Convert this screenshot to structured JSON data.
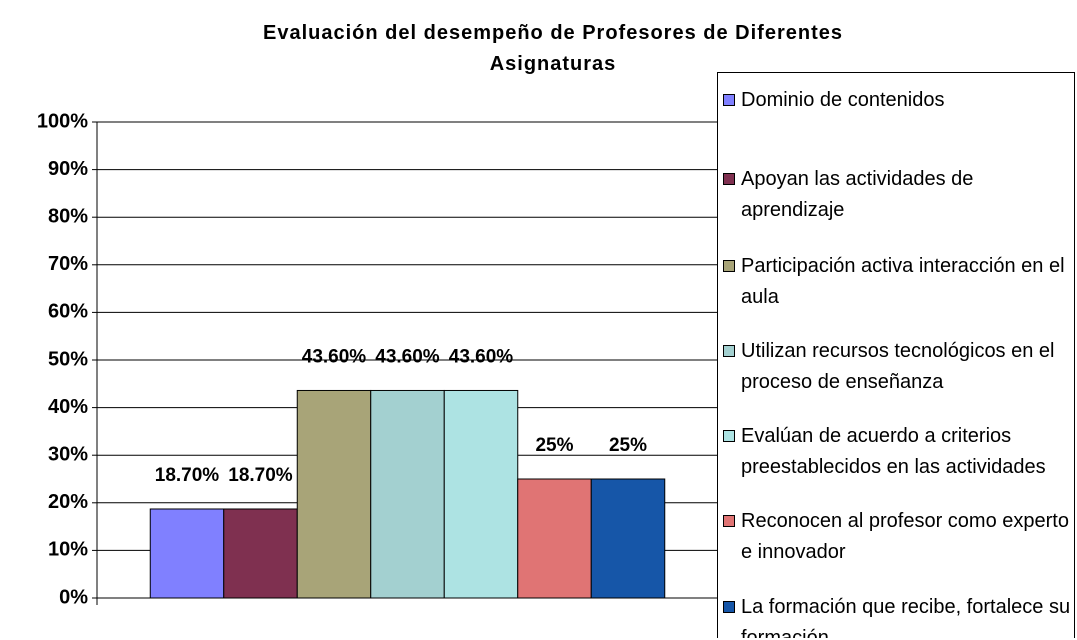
{
  "chart_data": {
    "type": "bar",
    "title": "Evaluación del desempeño de Profesores de Diferentes Asignaturas",
    "categories": [
      null
    ],
    "series": [
      {
        "name": "Dominio de contenidos",
        "color": "#8080ff",
        "values": [
          18.7
        ],
        "value_labels": [
          "18.70%"
        ]
      },
      {
        "name": "Apoyan las actividades de aprendizaje",
        "color": "#7f3050",
        "values": [
          18.7
        ],
        "value_labels": [
          "18.70%"
        ]
      },
      {
        "name": "Participación activa interacción en el aula",
        "color": "#a8a478",
        "values": [
          43.6
        ],
        "value_labels": [
          "43.60%"
        ]
      },
      {
        "name": "Utilizan recursos tecnológicos en el proceso de enseñanza",
        "color": "#a3d0d0",
        "values": [
          43.6
        ],
        "value_labels": [
          "43.60%"
        ]
      },
      {
        "name": "Evalúan de acuerdo a criterios preestablecidos en las actividades",
        "color": "#ade3e3",
        "values": [
          43.6
        ],
        "value_labels": [
          "43.60%"
        ]
      },
      {
        "name": "Reconocen al profesor como experto e innovador",
        "color": "#e07474",
        "values": [
          25
        ],
        "value_labels": [
          "25%"
        ]
      },
      {
        "name": "La formación que recibe, fortalece su formación",
        "color": "#1656a8",
        "values": [
          25
        ],
        "value_labels": [
          "25%"
        ]
      }
    ],
    "ylim": [
      0,
      100
    ],
    "yticks": [
      {
        "value": 0,
        "label": "0%"
      },
      {
        "value": 10,
        "label": "10%"
      },
      {
        "value": 20,
        "label": "20%"
      },
      {
        "value": 30,
        "label": "30%"
      },
      {
        "value": 40,
        "label": "40%"
      },
      {
        "value": 50,
        "label": "50%"
      },
      {
        "value": 60,
        "label": "60%"
      },
      {
        "value": 70,
        "label": "70%"
      },
      {
        "value": 80,
        "label": "80%"
      },
      {
        "value": 90,
        "label": "90%"
      },
      {
        "value": 100,
        "label": "100%"
      }
    ],
    "grid": true,
    "legend": "right"
  }
}
